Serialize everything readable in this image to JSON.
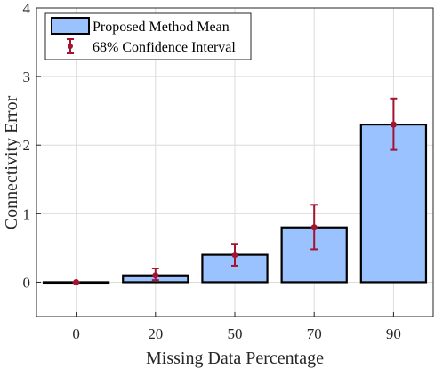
{
  "chart_data": {
    "type": "bar",
    "categories": [
      "0",
      "20",
      "50",
      "70",
      "90"
    ],
    "series": [
      {
        "name": "Proposed Method Mean",
        "values": [
          0.0,
          0.1,
          0.4,
          0.8,
          2.3
        ],
        "ci_low": [
          0.0,
          0.03,
          0.24,
          0.48,
          1.93
        ],
        "ci_high": [
          0.0,
          0.2,
          0.56,
          1.13,
          2.68
        ],
        "error_name": "68% Confidence Interval"
      }
    ],
    "xlabel": "Missing Data Percentage",
    "ylabel": "Connectivity Error",
    "ylim": [
      -0.5,
      4
    ],
    "yticks": [
      0,
      1,
      2,
      3,
      4
    ],
    "grid": true,
    "legend_position": "top-left",
    "colors": {
      "bar_fill": "#99c2ff",
      "bar_edge": "#000000",
      "error": "#a2142f",
      "grid": "#dcdcdc",
      "axis": "#262626"
    }
  }
}
